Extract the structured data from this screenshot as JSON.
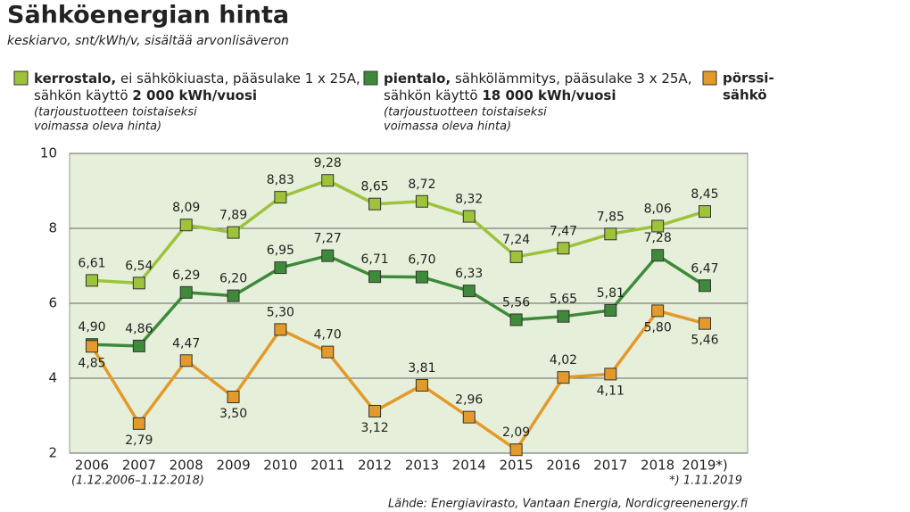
{
  "chart_data": {
    "type": "line",
    "title": "Sähköenergian hinta",
    "subtitle": "keskiarvo, snt/kWh/v, sisältää arvonlisäveron",
    "categories": [
      "2006",
      "2007",
      "2008",
      "2009",
      "2010",
      "2011",
      "2012",
      "2013",
      "2014",
      "2015",
      "2016",
      "2017",
      "2018",
      "2019*)"
    ],
    "x_note": "(1.12.2006–1.12.2018)",
    "footnote": "*) 1.11.2019",
    "source": "Lähde: Energiavirasto, Vantaan Energia, Nordicgreenenergy.fi",
    "ylim": [
      2,
      10
    ],
    "yticks": [
      2,
      4,
      6,
      8,
      10
    ],
    "grid": true,
    "series": [
      {
        "name": "kerrostalo,",
        "desc": "ei sähkökiuasta, pääsulake 1 x 25A,",
        "usage": "sähkön käyttö",
        "usage_value": "2 000 kWh/vuosi",
        "note": [
          "(tarjoustuotteen toistaiseksi",
          "voimassa oleva hinta)"
        ],
        "color": "#9dc33b",
        "values": [
          6.61,
          6.54,
          8.09,
          7.89,
          8.83,
          9.28,
          8.65,
          8.72,
          8.32,
          7.24,
          7.47,
          7.85,
          8.06,
          8.45
        ],
        "value_labels": [
          "6,61",
          "6,54",
          "8,09",
          "7,89",
          "8,83",
          "9,28",
          "8,65",
          "8,72",
          "8,32",
          "7,24",
          "7,47",
          "7,85",
          "8,06",
          "8,45"
        ]
      },
      {
        "name": "pientalo,",
        "desc": "sähkölämmitys, pääsulake 3 x 25A,",
        "usage": "sähkön käyttö",
        "usage_value": "18 000 kWh/vuosi",
        "note": [
          "(tarjoustuotteen toistaiseksi",
          "voimassa oleva hinta)"
        ],
        "color": "#3e8a3a",
        "values": [
          4.9,
          4.86,
          6.29,
          6.2,
          6.95,
          7.27,
          6.71,
          6.7,
          6.33,
          5.56,
          5.65,
          5.81,
          7.28,
          6.47
        ],
        "value_labels": [
          "4,90",
          "4,86",
          "6,29",
          "6,20",
          "6,95",
          "7,27",
          "6,71",
          "6,70",
          "6,33",
          "5,56",
          "5,65",
          "5,81",
          "7,28",
          "6,47"
        ]
      },
      {
        "name_lines": [
          "pörssi-",
          "sähkö"
        ],
        "color": "#e39a2a",
        "values": [
          4.85,
          2.79,
          4.47,
          3.5,
          5.3,
          4.7,
          3.12,
          3.81,
          2.96,
          2.09,
          4.02,
          4.11,
          5.8,
          5.46
        ],
        "value_labels": [
          "4,85",
          "2,79",
          "4,47",
          "3,50",
          "5,30",
          "4,70",
          "3,12",
          "3,81",
          "2,96",
          "2,09",
          "4,02",
          "4,11",
          "5,80",
          "5,46"
        ]
      }
    ]
  }
}
